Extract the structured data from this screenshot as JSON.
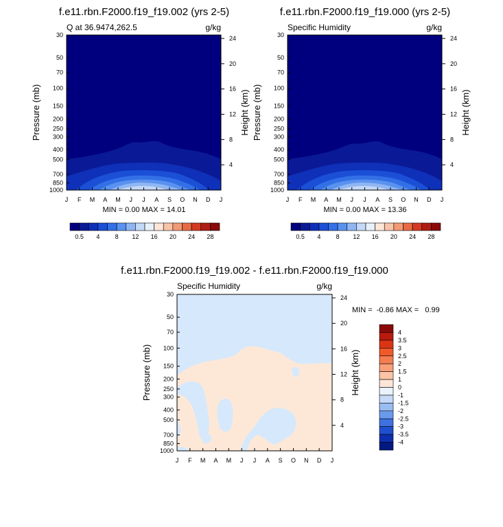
{
  "chart_data": [
    {
      "type": "heatmap",
      "title": "f.e11.rbn.F2000.f19_f19.002 (yrs 2-5)",
      "left_label": "Q at 36.9474,262.5",
      "units": "g/kg",
      "ylabel": "Pressure (mb)",
      "ylabel_right": "Height (km)",
      "months": [
        "J",
        "F",
        "M",
        "A",
        "M",
        "J",
        "J",
        "A",
        "S",
        "O",
        "N",
        "D",
        "J"
      ],
      "pressure_ticks": [
        "30",
        "50",
        "70",
        "100",
        "150",
        "200",
        "250",
        "300",
        "400",
        "500",
        "700",
        "850",
        "1000"
      ],
      "height_ticks": [
        "24",
        "20",
        "16",
        "12",
        "8",
        "4"
      ],
      "stats": "MIN =   0.00 MAX =  14.01",
      "colorbar_labels": [
        "0.5",
        "4",
        "8",
        "12",
        "16",
        "20",
        "24",
        "28"
      ],
      "colorbar_colors": [
        "#00007f",
        "#0a1a96",
        "#0f30b8",
        "#1a4fd6",
        "#3370e6",
        "#5a92ef",
        "#8fb6f3",
        "#c4d8f7",
        "#e8f0fa",
        "#fde5d8",
        "#f8c3a6",
        "#f29a75",
        "#e86a45",
        "#d43a22",
        "#b01c14",
        "#8a0a0a"
      ],
      "contours": [
        {
          "level": "0.5",
          "color": "#0a1a96",
          "lats": [
            470,
            482,
            470,
            455,
            440,
            420,
            402,
            394,
            397,
            410,
            418,
            438,
            465,
            482
          ]
        },
        {
          "level": "4",
          "color": "#0f30b8",
          "lats": [
            410,
            400,
            410,
            420,
            432,
            445,
            460,
            470,
            460,
            445,
            430,
            415,
            400,
            395
          ]
        }
      ]
    },
    {
      "type": "heatmap",
      "title": "f.e11.rbn.F2000.f19_f19.000 (yrs 2-5)",
      "left_label": "Specific Humidity",
      "units": "g/kg",
      "ylabel": "Pressure (mb)",
      "ylabel_right": "Height (km)",
      "months": [
        "J",
        "F",
        "M",
        "A",
        "M",
        "J",
        "J",
        "A",
        "S",
        "O",
        "N",
        "D",
        "J"
      ],
      "pressure_ticks": [
        "30",
        "50",
        "70",
        "100",
        "150",
        "200",
        "250",
        "300",
        "400",
        "500",
        "700",
        "850",
        "1000"
      ],
      "height_ticks": [
        "24",
        "20",
        "16",
        "12",
        "8",
        "4"
      ],
      "stats": "MIN =   0.00 MAX =  13.36",
      "colorbar_labels": [
        "0.5",
        "4",
        "8",
        "12",
        "16",
        "20",
        "24",
        "28"
      ]
    },
    {
      "type": "heatmap",
      "title": "f.e11.rbn.F2000.f19_f19.002 - f.e11.rbn.F2000.f19_f19.000",
      "left_label": "Specific Humidity",
      "units": "g/kg",
      "ylabel": "Pressure (mb)",
      "ylabel_right": "Height (km)",
      "months": [
        "J",
        "F",
        "M",
        "A",
        "M",
        "J",
        "J",
        "A",
        "S",
        "O",
        "N",
        "D",
        "J"
      ],
      "pressure_ticks": [
        "30",
        "50",
        "70",
        "100",
        "150",
        "200",
        "250",
        "300",
        "400",
        "500",
        "700",
        "850",
        "1000"
      ],
      "height_ticks": [
        "24",
        "20",
        "16",
        "12",
        "8",
        "4"
      ],
      "stats": "MIN =  -0.86 MAX =   0.99",
      "colorbar_labels": [
        "4",
        "3.5",
        "3",
        "2.5",
        "2",
        "1.5",
        "1",
        "0",
        "-1",
        "-1.5",
        "-2",
        "-2.5",
        "-3",
        "-3.5",
        "-4"
      ],
      "colorbar_colors": [
        "#8a0a0a",
        "#b81a0e",
        "#d93515",
        "#f05a2a",
        "#f57d52",
        "#f8a07a",
        "#fbc4a6",
        "#fde5d8",
        "#eaf2fb",
        "#c6d9f6",
        "#99bdf2",
        "#6a9aec",
        "#3f72e0",
        "#1f4fcf",
        "#0d2fae",
        "#021a80"
      ]
    }
  ]
}
